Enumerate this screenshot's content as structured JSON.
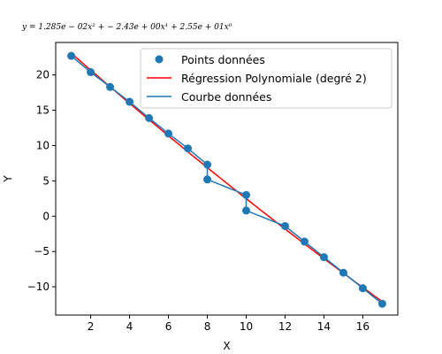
{
  "chart_data": {
    "type": "scatter",
    "title": "y = 1.285e − 02x² + − 2.43e + 00x¹ + 2.55e + 01x⁰",
    "xlabel": "X",
    "ylabel": "Y",
    "xlim": [
      0.2,
      17.8
    ],
    "ylim": [
      -14.0,
      24.6
    ],
    "xticks": [
      2,
      4,
      6,
      8,
      10,
      12,
      14,
      16
    ],
    "yticks": [
      -10,
      -5,
      0,
      5,
      10,
      15,
      20
    ],
    "grid": false,
    "legend_position": "top-right",
    "series": [
      {
        "name": "Points données",
        "kind": "scatter",
        "color": "#1f77b4",
        "x": [
          1,
          2,
          3,
          4,
          5,
          6,
          7,
          8,
          8,
          10,
          10,
          12,
          13,
          14,
          15,
          16,
          17
        ],
        "y": [
          22.7,
          20.4,
          18.3,
          16.2,
          13.9,
          11.7,
          9.6,
          7.3,
          5.2,
          3.0,
          0.8,
          -1.4,
          -3.6,
          -5.8,
          -8.0,
          -10.2,
          -12.4
        ]
      },
      {
        "name": "Régression Polynomiale (degré 2)",
        "kind": "line",
        "color": "#ff0000",
        "coefficients": [
          0.01285,
          -2.43,
          25.5
        ],
        "x_range": [
          1,
          17
        ]
      },
      {
        "name": "Courbe données",
        "kind": "line",
        "color": "#1f77b4",
        "x": [
          1,
          2,
          3,
          4,
          5,
          6,
          7,
          8,
          8,
          10,
          10,
          12,
          13,
          14,
          15,
          16,
          17
        ],
        "y": [
          22.7,
          20.4,
          18.3,
          16.2,
          13.9,
          11.7,
          9.6,
          7.3,
          5.2,
          3.0,
          0.8,
          -1.4,
          -3.6,
          -5.8,
          -8.0,
          -10.2,
          -12.4
        ]
      }
    ]
  }
}
